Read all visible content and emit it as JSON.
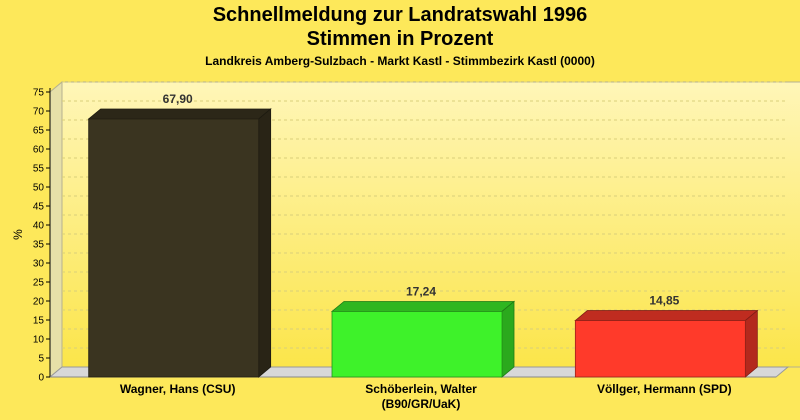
{
  "chart_data": {
    "type": "bar",
    "title": "Schnellmeldung zur Landratswahl 1996",
    "subtitle": "Stimmen in Prozent",
    "caption": "Landkreis Amberg-Sulzbach - Markt Kastl - Stimmbezirk Kastl (0000)",
    "ylabel": "%",
    "ylim": [
      0,
      75
    ],
    "yticks": [
      0,
      5,
      10,
      15,
      20,
      25,
      30,
      35,
      40,
      45,
      50,
      55,
      60,
      65,
      70,
      75
    ],
    "categories": [
      [
        "Wagner, Hans (CSU)"
      ],
      [
        "Schöberlein, Walter",
        "(B90/GR/UaK)"
      ],
      [
        "Völlger, Hermann (SPD)"
      ]
    ],
    "values": [
      67.9,
      17.24,
      14.85
    ],
    "value_labels": [
      "67,90",
      "17,24",
      "14,85"
    ],
    "colors": [
      "#3a3420",
      "#3ef22a",
      "#ff3a2a"
    ],
    "grid": true
  }
}
